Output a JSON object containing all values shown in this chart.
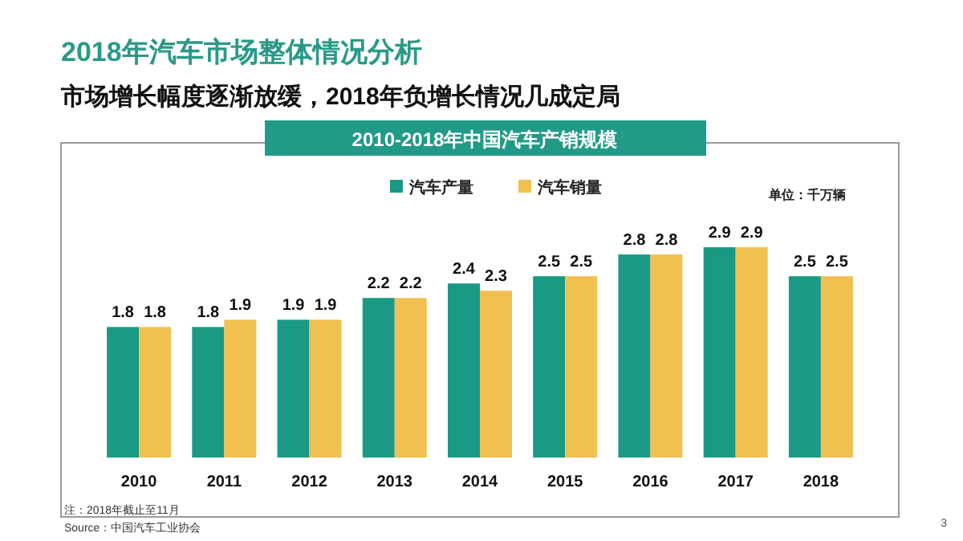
{
  "chart_data": {
    "type": "bar",
    "title": "2018年汽车市场整体情况分析",
    "subtitle": "市场增长幅度逐渐放缓，2018年负增长情况几成定局",
    "categories": [
      "2010",
      "2011",
      "2012",
      "2013",
      "2014",
      "2015",
      "2016",
      "2017",
      "2018"
    ],
    "series": [
      {
        "name": "汽车产量",
        "color": "#1a9985",
        "values": [
          1.8,
          1.8,
          1.9,
          2.2,
          2.4,
          2.5,
          2.8,
          2.9,
          2.5
        ]
      },
      {
        "name": "汽车销量",
        "color": "#f0c050",
        "values": [
          1.8,
          1.9,
          1.9,
          2.2,
          2.3,
          2.5,
          2.8,
          2.9,
          2.5
        ]
      }
    ],
    "data_labels": true,
    "legend": "top",
    "grid": false,
    "annotations": [
      "2010-2018年中国汽车产销规模",
      "单位：千万辆",
      "注：2018年截止至11月",
      "Source：中国汽车工业协会",
      "3"
    ]
  }
}
